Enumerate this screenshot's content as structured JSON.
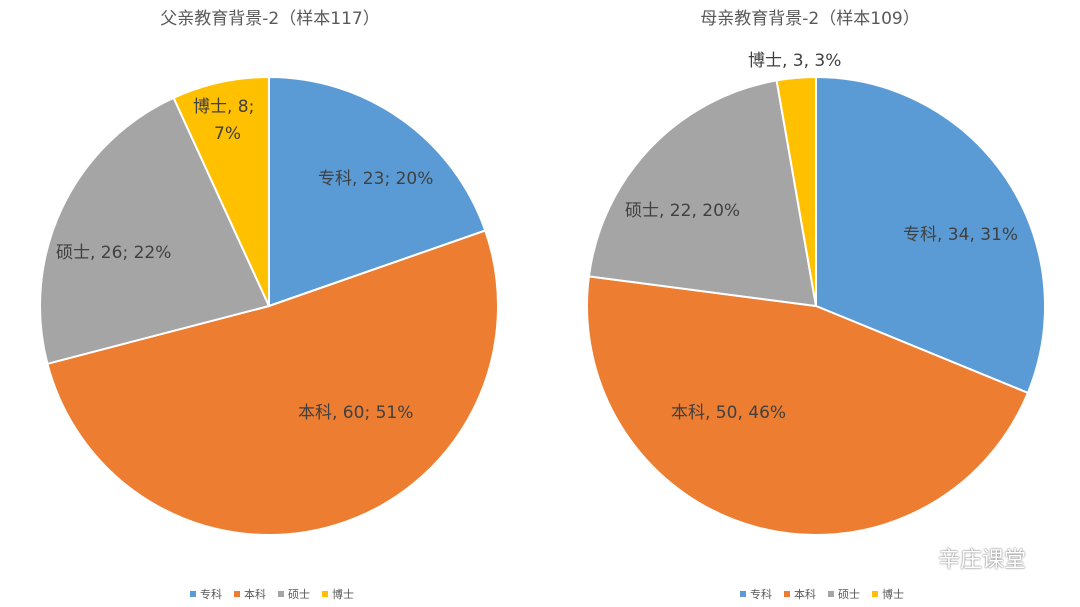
{
  "chart_data": [
    {
      "type": "pie",
      "title": "父亲教育背景-2（样本117）",
      "slices": [
        {
          "label": "专科",
          "value": 23,
          "percent": "20%",
          "sep": "; "
        },
        {
          "label": "本科",
          "value": 60,
          "percent": "51%",
          "sep": "; "
        },
        {
          "label": "硕士",
          "value": 26,
          "percent": "22%",
          "sep": "; "
        },
        {
          "label": "博士",
          "value": 8,
          "percent": "7%",
          "sep": "; "
        }
      ],
      "legend": [
        "专科",
        "本科",
        "硕士",
        "博士"
      ],
      "legend_position": "bottom"
    },
    {
      "type": "pie",
      "title": "母亲教育背景-2（样本109）",
      "slices": [
        {
          "label": "专科",
          "value": 34,
          "percent": "31%",
          "sep": ", "
        },
        {
          "label": "本科",
          "value": 50,
          "percent": "46%",
          "sep": ", "
        },
        {
          "label": "硕士",
          "value": 22,
          "percent": "20%",
          "sep": ", "
        },
        {
          "label": "博士",
          "value": 3,
          "percent": "3%",
          "sep": ", "
        }
      ],
      "legend": [
        "专科",
        "本科",
        "硕士",
        "博士"
      ],
      "legend_position": "bottom"
    }
  ],
  "colors": {
    "专科": "#5B9BD5",
    "本科": "#ED7D31",
    "硕士": "#A5A5A5",
    "博士": "#FFC000"
  },
  "watermark": {
    "text": "辛庄课堂",
    "icon": "wechat-icon"
  }
}
